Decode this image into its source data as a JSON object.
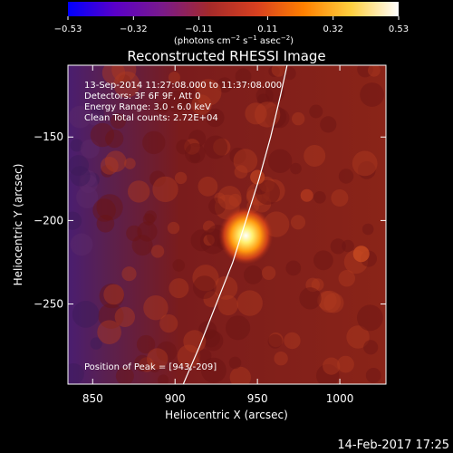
{
  "chart_data": {
    "type": "heatmap",
    "title": "Reconstructed RHESSI Image",
    "info_lines": [
      "13-Sep-2014 11:27:08.000 to 11:37:08.000",
      "Detectors: 3F 6F 9F, Att 0",
      "Energy Range: 3.0 - 6.0 keV",
      "Clean    Total counts: 2.72E+04"
    ],
    "peak_label": "Position of Peak = [943,-209]",
    "peak": {
      "x": 943,
      "y": -209
    },
    "xlabel": "Heliocentric X (arcsec)",
    "ylabel": "Heliocentric Y (arcsec)",
    "xlim": [
      835,
      1028
    ],
    "ylim": [
      -298,
      -107
    ],
    "xticks": [
      850,
      900,
      950,
      1000
    ],
    "xtick_labels": [
      "850",
      "900",
      "950",
      "1000"
    ],
    "yticks": [
      -150,
      -200,
      -250
    ],
    "ytick_labels": [
      "−150",
      "−200",
      "−250"
    ],
    "colorbar": {
      "ticks": [
        -0.53,
        -0.32,
        -0.11,
        0.11,
        0.32,
        0.53
      ],
      "tick_labels": [
        "−0.53",
        "−0.32",
        "−0.11",
        "0.11",
        "0.32",
        "0.53"
      ],
      "units_text": "(photons cm",
      "units_sup1": "−2",
      "units_mid": " s",
      "units_sup2": "−1",
      "units_end": " asec",
      "units_sup3": "−2",
      "units_close": ")",
      "colors": [
        "#0000ff",
        "#5a00c8",
        "#7a1a8a",
        "#a52a2a",
        "#d84020",
        "#ff8000",
        "#ffd040",
        "#ffffff"
      ]
    },
    "limb_points": [
      [
        905,
        -298
      ],
      [
        915,
        -275
      ],
      [
        925,
        -250
      ],
      [
        935,
        -225
      ],
      [
        943,
        -200
      ],
      [
        951,
        -175
      ],
      [
        958,
        -150
      ],
      [
        964,
        -125
      ],
      [
        968,
        -107
      ]
    ],
    "grid": false
  },
  "footer_timestamp": "14-Feb-2017 17:25"
}
